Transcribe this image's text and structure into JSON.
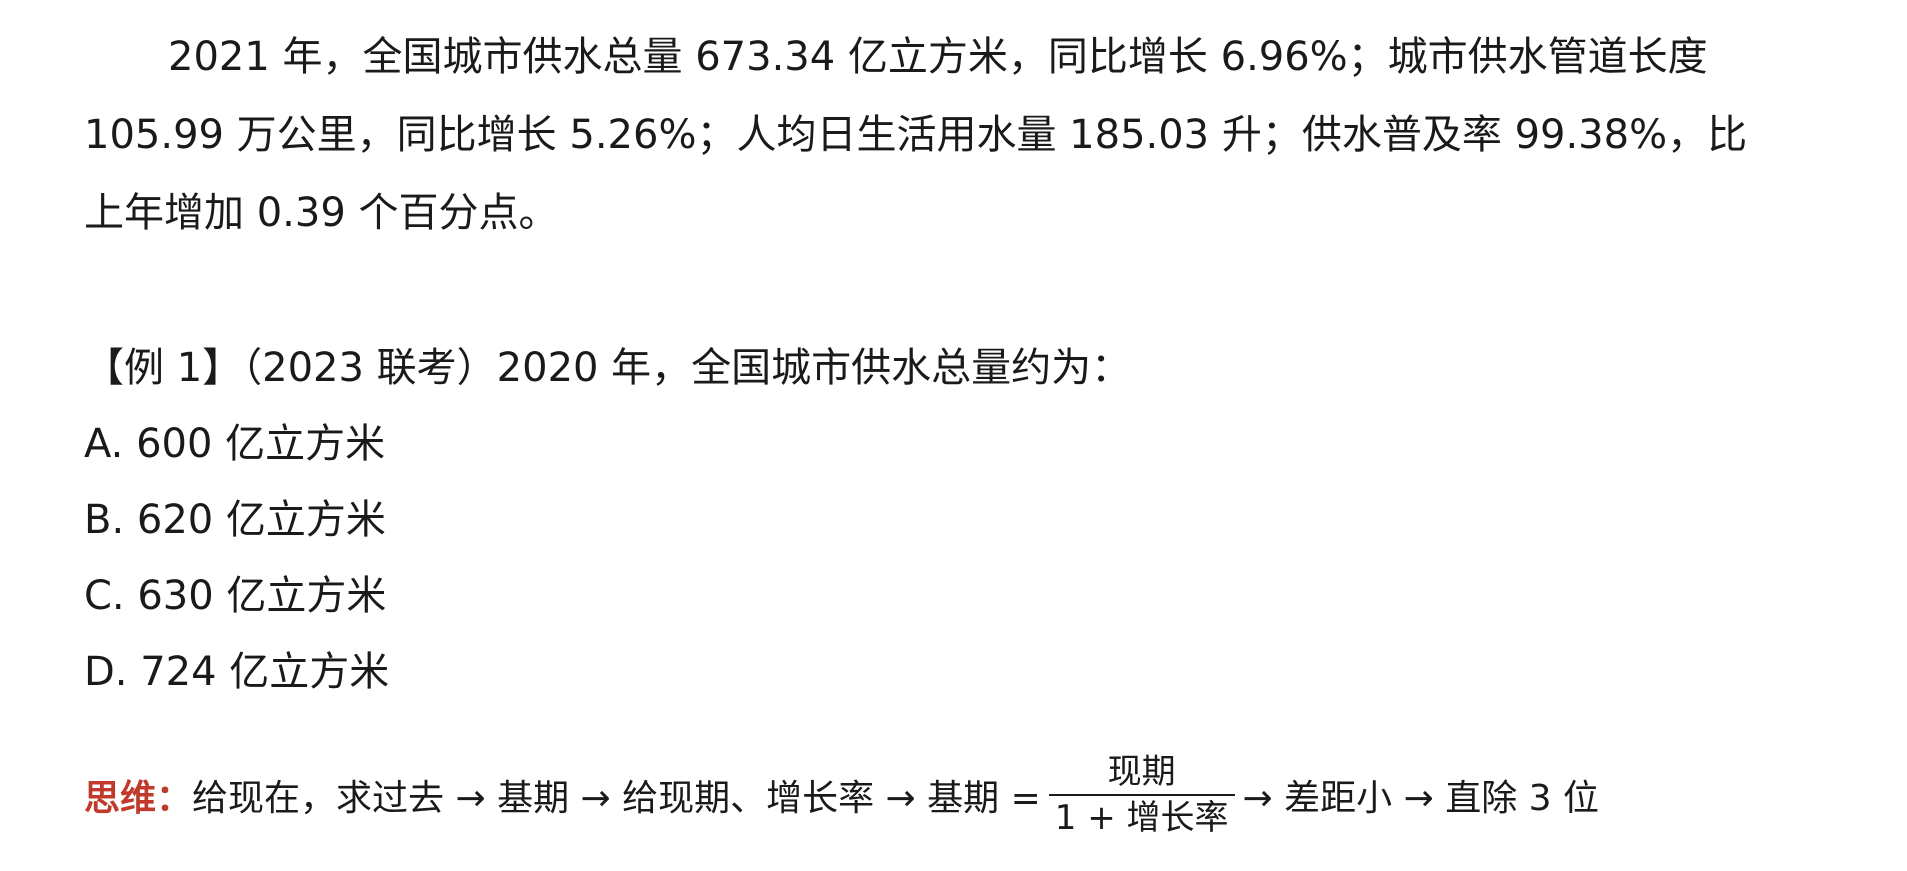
{
  "paragraph": {
    "lines": [
      "2021 年，全国城市供水总量 673.34 亿立方米，同比增长 6.96%；城市供水管道长度",
      "105.99 万公里，同比增长 5.26%；人均日生活用水量 185.03 升；供水普及率 99.38%，比",
      "上年增加 0.39 个百分点。"
    ]
  },
  "question": {
    "stem": "【例 1】（2023 联考）2020 年，全国城市供水总量约为：",
    "options": [
      "A. 600 亿立方米",
      "B. 620 亿立方米",
      "C. 630 亿立方米",
      "D. 724 亿立方米"
    ]
  },
  "thinking": {
    "label": "思维：",
    "text_before": "给现在，求过去 → 基期 → 给现期、增长率 → 基期 =",
    "numerator": "现期",
    "denominator": "1 + 增长率",
    "text_after": "→ 差距小 → 直除 3 位"
  }
}
